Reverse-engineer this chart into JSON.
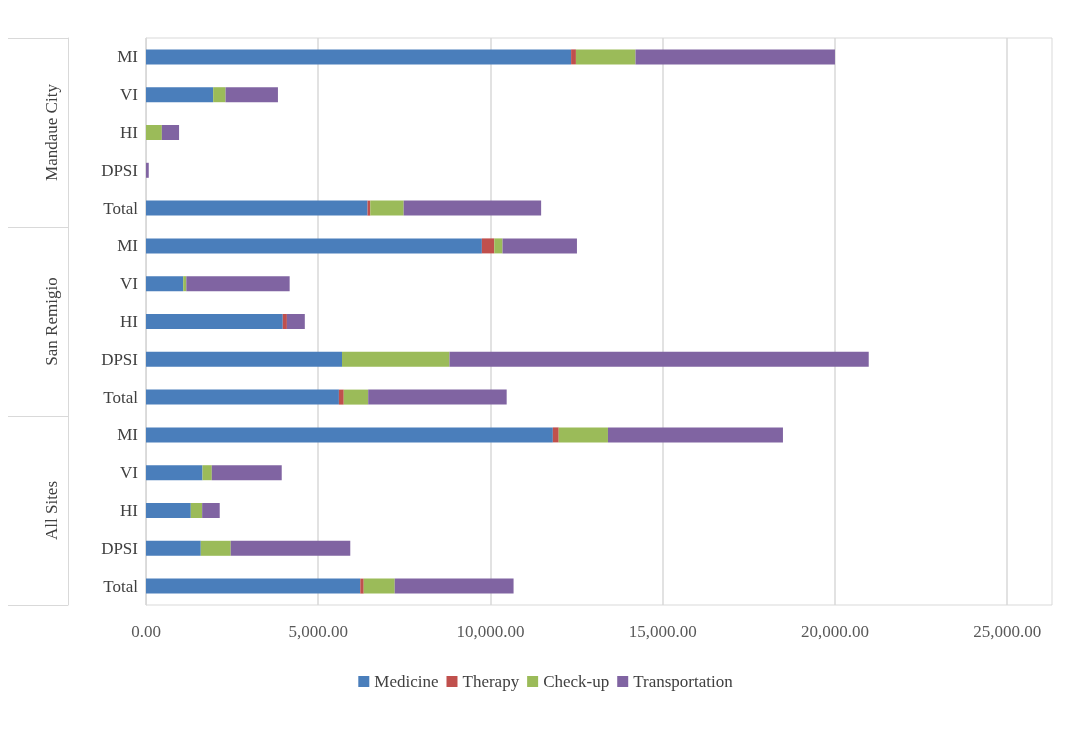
{
  "chart_data": {
    "type": "bar",
    "orientation": "horizontal",
    "stacked": true,
    "categories": [
      "MI",
      "VI",
      "HI",
      "DPSI",
      "Total",
      "MI",
      "VI",
      "HI",
      "DPSI",
      "Total",
      "MI",
      "VI",
      "HI",
      "DPSI",
      "Total"
    ],
    "annotations": [
      "Mandaue City",
      "San Remigio",
      "All Sites"
    ],
    "series": [
      {
        "name": "Medicine",
        "color": "#4a7ebb",
        "values": [
          12340,
          1950,
          0,
          0,
          6430,
          9750,
          1080,
          3970,
          5690,
          5600,
          11810,
          1640,
          1300,
          1590,
          6220
        ]
      },
      {
        "name": "Therapy",
        "color": "#c0504d",
        "values": [
          140,
          0,
          0,
          0,
          80,
          360,
          0,
          120,
          0,
          140,
          170,
          0,
          0,
          0,
          100
        ]
      },
      {
        "name": "Check-up",
        "color": "#9bbb59",
        "values": [
          1730,
          360,
          460,
          0,
          970,
          240,
          90,
          0,
          3120,
          710,
          1430,
          270,
          330,
          870,
          900
        ]
      },
      {
        "name": "Transportation",
        "color": "#8064a2",
        "values": [
          5790,
          1520,
          500,
          80,
          3990,
          2160,
          3000,
          520,
          12170,
          4020,
          5080,
          2030,
          510,
          3470,
          3450
        ]
      }
    ],
    "xlim": [
      0,
      26300
    ],
    "xticks": [
      {
        "value": 0,
        "label": "0.00"
      },
      {
        "value": 5000,
        "label": "5,000.00"
      },
      {
        "value": 10000,
        "label": "10,000.00"
      },
      {
        "value": 15000,
        "label": "15,000.00"
      },
      {
        "value": 20000,
        "label": "20,000.00"
      },
      {
        "value": 25000,
        "label": "25,000.00"
      }
    ],
    "grid": "x",
    "legend": "bottom"
  }
}
